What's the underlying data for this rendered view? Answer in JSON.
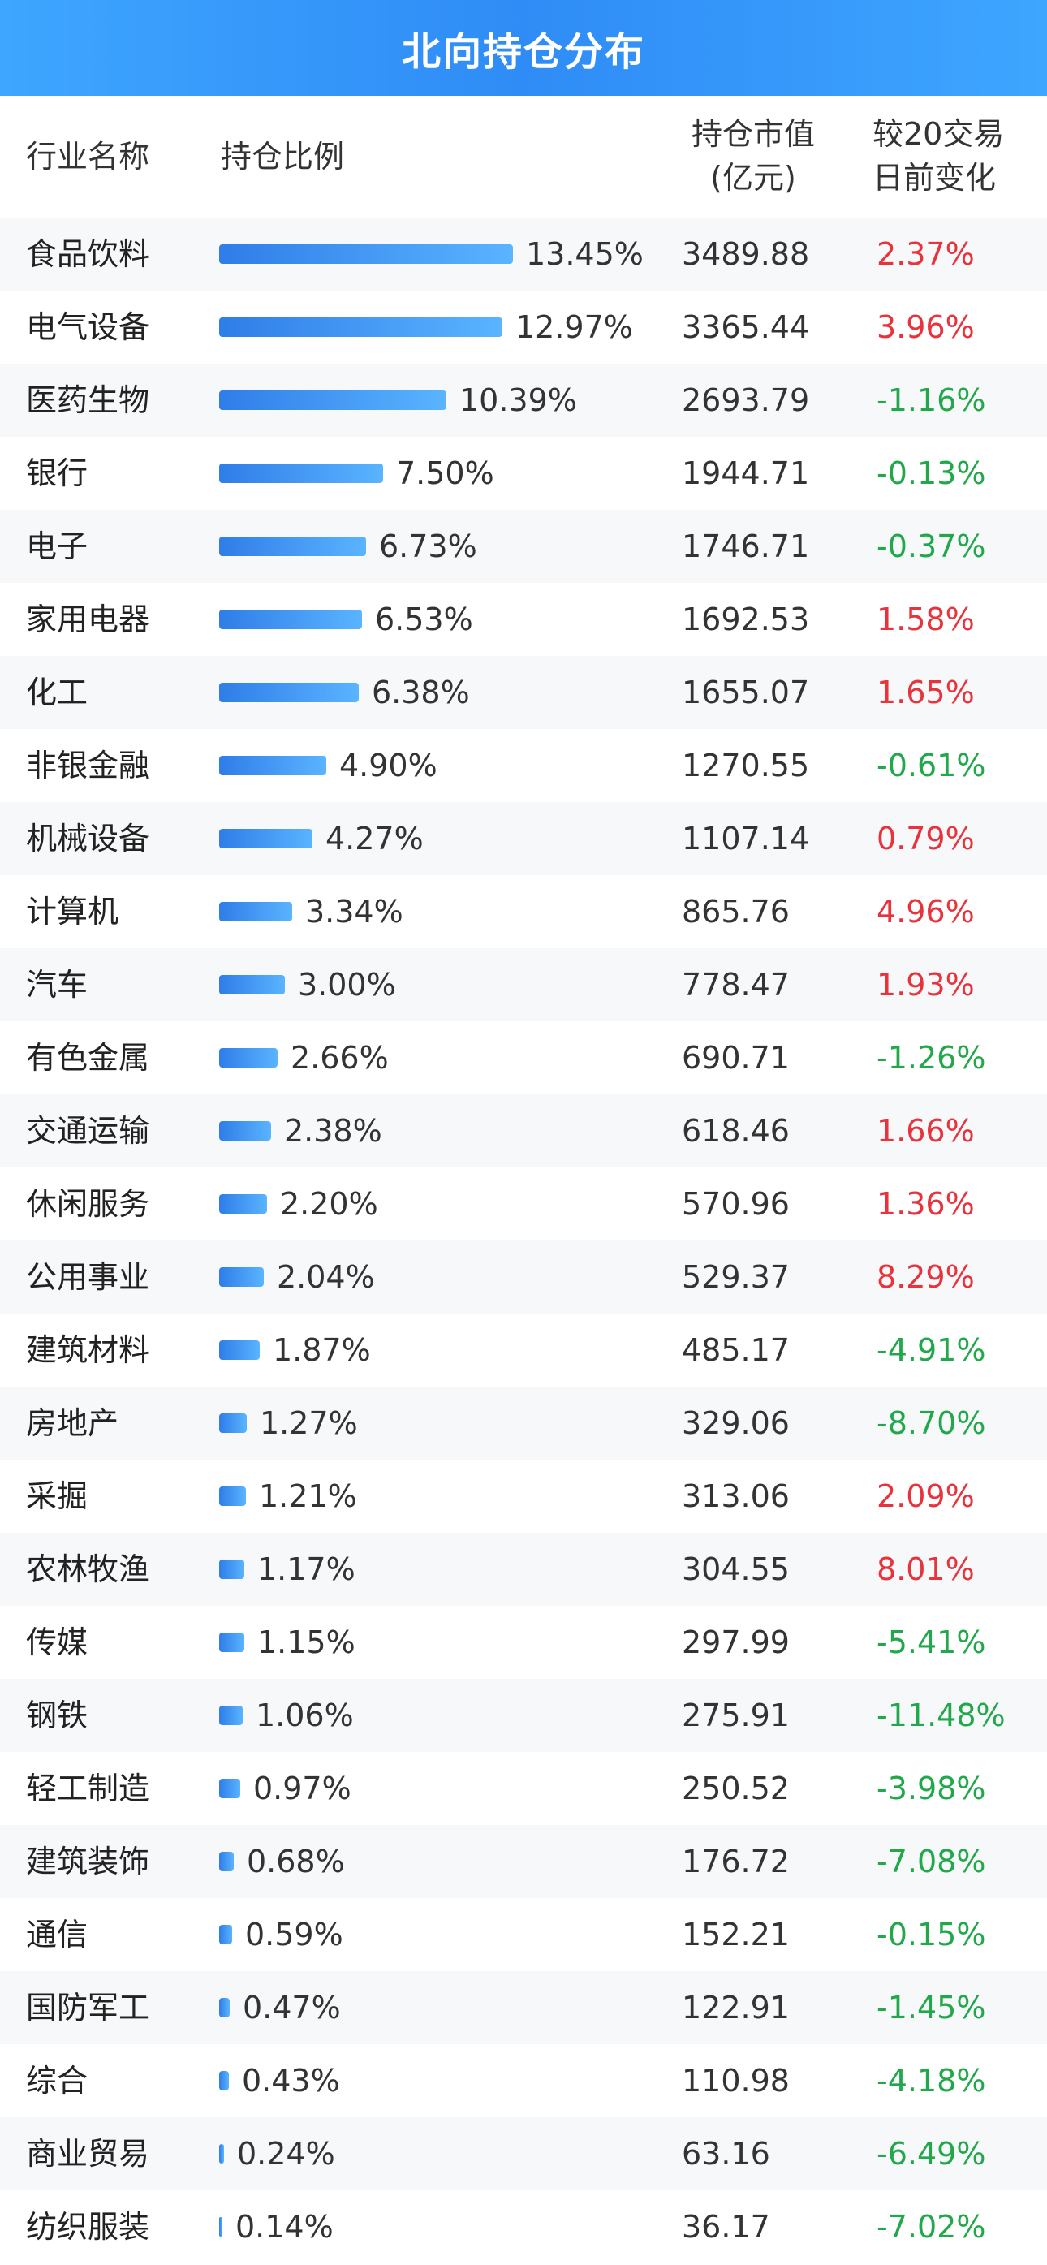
{
  "title": "北向持仓分布",
  "headers": {
    "industry": "行业名称",
    "ratio": "持仓比例",
    "market_value_line1": "持仓市值",
    "market_value_line2": "(亿元)",
    "change_line1": "较20交易",
    "change_line2": "日前变化"
  },
  "colors": {
    "header_bg": "#2f8cf6",
    "bar": "#3a95f8",
    "positive": "#e8333c",
    "negative": "#20a84a"
  },
  "chart_data": {
    "type": "table",
    "columns": [
      "行业名称",
      "持仓比例",
      "持仓市值(亿元)",
      "较20交易日前变化"
    ],
    "rows": [
      {
        "industry": "食品饮料",
        "ratio": 13.45,
        "ratio_label": "13.45%",
        "market_value": "3489.88",
        "change": 2.37,
        "change_label": "2.37%"
      },
      {
        "industry": "电气设备",
        "ratio": 12.97,
        "ratio_label": "12.97%",
        "market_value": "3365.44",
        "change": 3.96,
        "change_label": "3.96%"
      },
      {
        "industry": "医药生物",
        "ratio": 10.39,
        "ratio_label": "10.39%",
        "market_value": "2693.79",
        "change": -1.16,
        "change_label": "-1.16%"
      },
      {
        "industry": "银行",
        "ratio": 7.5,
        "ratio_label": "7.50%",
        "market_value": "1944.71",
        "change": -0.13,
        "change_label": "-0.13%"
      },
      {
        "industry": "电子",
        "ratio": 6.73,
        "ratio_label": "6.73%",
        "market_value": "1746.71",
        "change": -0.37,
        "change_label": "-0.37%"
      },
      {
        "industry": "家用电器",
        "ratio": 6.53,
        "ratio_label": "6.53%",
        "market_value": "1692.53",
        "change": 1.58,
        "change_label": "1.58%"
      },
      {
        "industry": "化工",
        "ratio": 6.38,
        "ratio_label": "6.38%",
        "market_value": "1655.07",
        "change": 1.65,
        "change_label": "1.65%"
      },
      {
        "industry": "非银金融",
        "ratio": 4.9,
        "ratio_label": "4.90%",
        "market_value": "1270.55",
        "change": -0.61,
        "change_label": "-0.61%"
      },
      {
        "industry": "机械设备",
        "ratio": 4.27,
        "ratio_label": "4.27%",
        "market_value": "1107.14",
        "change": 0.79,
        "change_label": "0.79%"
      },
      {
        "industry": "计算机",
        "ratio": 3.34,
        "ratio_label": "3.34%",
        "market_value": "865.76",
        "change": 4.96,
        "change_label": "4.96%"
      },
      {
        "industry": "汽车",
        "ratio": 3.0,
        "ratio_label": "3.00%",
        "market_value": "778.47",
        "change": 1.93,
        "change_label": "1.93%"
      },
      {
        "industry": "有色金属",
        "ratio": 2.66,
        "ratio_label": "2.66%",
        "market_value": "690.71",
        "change": -1.26,
        "change_label": "-1.26%"
      },
      {
        "industry": "交通运输",
        "ratio": 2.38,
        "ratio_label": "2.38%",
        "market_value": "618.46",
        "change": 1.66,
        "change_label": "1.66%"
      },
      {
        "industry": "休闲服务",
        "ratio": 2.2,
        "ratio_label": "2.20%",
        "market_value": "570.96",
        "change": 1.36,
        "change_label": "1.36%"
      },
      {
        "industry": "公用事业",
        "ratio": 2.04,
        "ratio_label": "2.04%",
        "market_value": "529.37",
        "change": 8.29,
        "change_label": "8.29%"
      },
      {
        "industry": "建筑材料",
        "ratio": 1.87,
        "ratio_label": "1.87%",
        "market_value": "485.17",
        "change": -4.91,
        "change_label": "-4.91%"
      },
      {
        "industry": "房地产",
        "ratio": 1.27,
        "ratio_label": "1.27%",
        "market_value": "329.06",
        "change": -8.7,
        "change_label": "-8.70%"
      },
      {
        "industry": "采掘",
        "ratio": 1.21,
        "ratio_label": "1.21%",
        "market_value": "313.06",
        "change": 2.09,
        "change_label": "2.09%"
      },
      {
        "industry": "农林牧渔",
        "ratio": 1.17,
        "ratio_label": "1.17%",
        "market_value": "304.55",
        "change": 8.01,
        "change_label": "8.01%"
      },
      {
        "industry": "传媒",
        "ratio": 1.15,
        "ratio_label": "1.15%",
        "market_value": "297.99",
        "change": -5.41,
        "change_label": "-5.41%"
      },
      {
        "industry": "钢铁",
        "ratio": 1.06,
        "ratio_label": "1.06%",
        "market_value": "275.91",
        "change": -11.48,
        "change_label": "-11.48%"
      },
      {
        "industry": "轻工制造",
        "ratio": 0.97,
        "ratio_label": "0.97%",
        "market_value": "250.52",
        "change": -3.98,
        "change_label": "-3.98%"
      },
      {
        "industry": "建筑装饰",
        "ratio": 0.68,
        "ratio_label": "0.68%",
        "market_value": "176.72",
        "change": -7.08,
        "change_label": "-7.08%"
      },
      {
        "industry": "通信",
        "ratio": 0.59,
        "ratio_label": "0.59%",
        "market_value": "152.21",
        "change": -0.15,
        "change_label": "-0.15%"
      },
      {
        "industry": "国防军工",
        "ratio": 0.47,
        "ratio_label": "0.47%",
        "market_value": "122.91",
        "change": -1.45,
        "change_label": "-1.45%"
      },
      {
        "industry": "综合",
        "ratio": 0.43,
        "ratio_label": "0.43%",
        "market_value": "110.98",
        "change": -4.18,
        "change_label": "-4.18%"
      },
      {
        "industry": "商业贸易",
        "ratio": 0.24,
        "ratio_label": "0.24%",
        "market_value": "63.16",
        "change": -6.49,
        "change_label": "-6.49%"
      },
      {
        "industry": "纺织服装",
        "ratio": 0.14,
        "ratio_label": "0.14%",
        "market_value": "36.17",
        "change": -7.02,
        "change_label": "-7.02%"
      }
    ]
  }
}
